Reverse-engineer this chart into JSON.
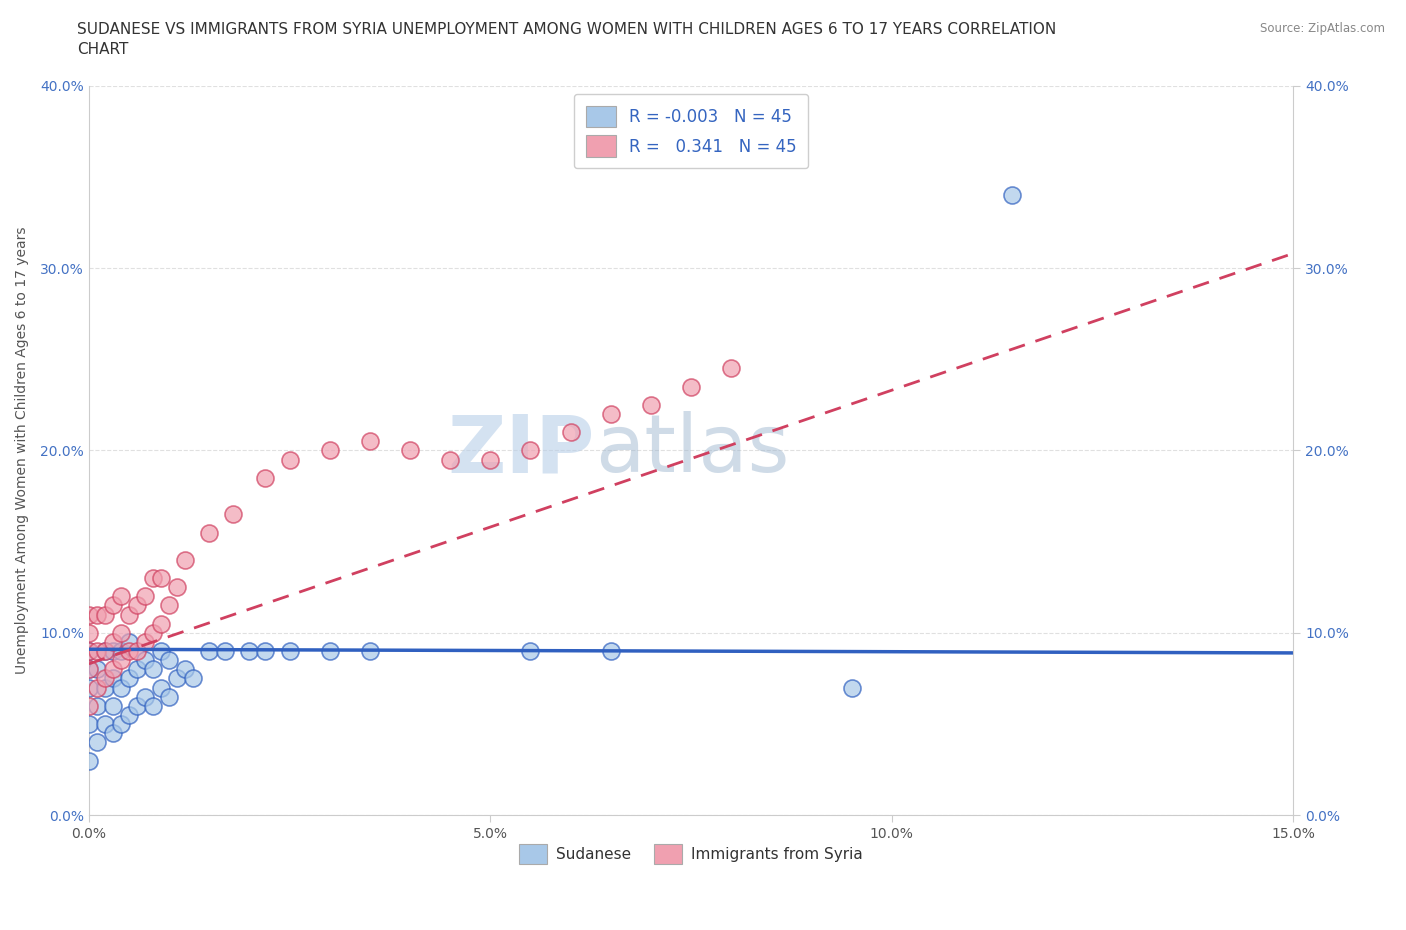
{
  "title_line1": "SUDANESE VS IMMIGRANTS FROM SYRIA UNEMPLOYMENT AMONG WOMEN WITH CHILDREN AGES 6 TO 17 YEARS CORRELATION",
  "title_line2": "CHART",
  "source": "Source: ZipAtlas.com",
  "ylabel": "Unemployment Among Women with Children Ages 6 to 17 years",
  "xlim": [
    0.0,
    0.15
  ],
  "ylim": [
    0.0,
    0.4
  ],
  "xticks": [
    0.0,
    0.05,
    0.1,
    0.15
  ],
  "xtick_labels": [
    "0.0%",
    "5.0%",
    "10.0%",
    "15.0%"
  ],
  "yticks": [
    0.0,
    0.1,
    0.2,
    0.3,
    0.4
  ],
  "ytick_labels": [
    "0.0%",
    "10.0%",
    "20.0%",
    "30.0%",
    "40.0%"
  ],
  "sudanese_color": "#a8c8e8",
  "syria_color": "#f0a0b0",
  "sudanese_line_color": "#3060c0",
  "syria_line_color": "#d04060",
  "R_sudanese": -0.003,
  "R_syria": 0.341,
  "N_sudanese": 45,
  "N_syria": 45,
  "legend_label_1": "Sudanese",
  "legend_label_2": "Immigrants from Syria",
  "watermark_zip": "ZIP",
  "watermark_atlas": "atlas",
  "background_color": "#ffffff",
  "grid_color": "#e0e0e0",
  "title_fontsize": 11,
  "axis_fontsize": 10,
  "tick_fontsize": 10,
  "sudanese_x": [
    0.0,
    0.0,
    0.0,
    0.0,
    0.0,
    0.001,
    0.001,
    0.001,
    0.002,
    0.002,
    0.002,
    0.003,
    0.003,
    0.003,
    0.003,
    0.004,
    0.004,
    0.004,
    0.005,
    0.005,
    0.005,
    0.006,
    0.006,
    0.007,
    0.007,
    0.008,
    0.008,
    0.009,
    0.009,
    0.01,
    0.01,
    0.011,
    0.012,
    0.013,
    0.015,
    0.017,
    0.02,
    0.022,
    0.025,
    0.03,
    0.035,
    0.055,
    0.065,
    0.095,
    0.115
  ],
  "sudanese_y": [
    0.03,
    0.05,
    0.07,
    0.08,
    0.09,
    0.04,
    0.06,
    0.08,
    0.05,
    0.07,
    0.09,
    0.045,
    0.06,
    0.075,
    0.09,
    0.05,
    0.07,
    0.09,
    0.055,
    0.075,
    0.095,
    0.06,
    0.08,
    0.065,
    0.085,
    0.06,
    0.08,
    0.07,
    0.09,
    0.065,
    0.085,
    0.075,
    0.08,
    0.075,
    0.09,
    0.09,
    0.09,
    0.09,
    0.09,
    0.09,
    0.09,
    0.09,
    0.09,
    0.07,
    0.34
  ],
  "syria_x": [
    0.0,
    0.0,
    0.0,
    0.0,
    0.0,
    0.001,
    0.001,
    0.001,
    0.002,
    0.002,
    0.002,
    0.003,
    0.003,
    0.003,
    0.004,
    0.004,
    0.004,
    0.005,
    0.005,
    0.006,
    0.006,
    0.007,
    0.007,
    0.008,
    0.008,
    0.009,
    0.009,
    0.01,
    0.011,
    0.012,
    0.015,
    0.018,
    0.022,
    0.025,
    0.03,
    0.035,
    0.04,
    0.045,
    0.05,
    0.055,
    0.06,
    0.065,
    0.07,
    0.075,
    0.08
  ],
  "syria_y": [
    0.06,
    0.08,
    0.09,
    0.1,
    0.11,
    0.07,
    0.09,
    0.11,
    0.075,
    0.09,
    0.11,
    0.08,
    0.095,
    0.115,
    0.085,
    0.1,
    0.12,
    0.09,
    0.11,
    0.09,
    0.115,
    0.095,
    0.12,
    0.1,
    0.13,
    0.105,
    0.13,
    0.115,
    0.125,
    0.14,
    0.155,
    0.165,
    0.185,
    0.195,
    0.2,
    0.205,
    0.2,
    0.195,
    0.195,
    0.2,
    0.21,
    0.22,
    0.225,
    0.235,
    0.245
  ],
  "sudanese_trendline_x": [
    0.0,
    0.15
  ],
  "sudanese_trendline_y": [
    0.091,
    0.089
  ],
  "syria_trendline_x": [
    0.0,
    0.15
  ],
  "syria_trendline_y": [
    0.083,
    0.308
  ]
}
